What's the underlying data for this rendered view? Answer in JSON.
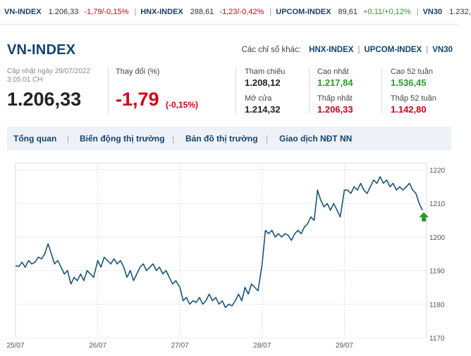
{
  "ticker": [
    {
      "name": "VN-INDEX",
      "value": "1.206,33",
      "change": "-1,79/-0,15%",
      "dir": "down"
    },
    {
      "name": "HNX-INDEX",
      "value": "288,61",
      "change": "-1,23/-0,42%",
      "dir": "down"
    },
    {
      "name": "UPCOM-INDEX",
      "value": "89,61",
      "change": "+0,11/+0,12%",
      "dir": "up"
    },
    {
      "name": "VN30",
      "value": "1.232,",
      "change": "",
      "dir": "none"
    }
  ],
  "header": {
    "title": "VN-INDEX",
    "others_label": "Các chỉ số khác:",
    "links": [
      "HNX-INDEX",
      "UPCOM-INDEX",
      "VN30"
    ]
  },
  "summary": {
    "updated_line1": "Cập nhật ngày 29/07/2022",
    "updated_line2": "3:05:01 CH",
    "price": "1.206,33",
    "change_label": "Thay đổi (%)",
    "change": "-1,79",
    "change_pct": "(-0,15%)"
  },
  "stats": [
    {
      "label": "Tham chiếu",
      "value": "1.208,12",
      "color": "#222222"
    },
    {
      "label": "Cao nhất",
      "value": "1.217,84",
      "color": "#2b9a2b"
    },
    {
      "label": "Cao 52 tuần",
      "value": "1.536,45",
      "color": "#2b9a2b"
    },
    {
      "label": "Mở cửa",
      "value": "1.214,32",
      "color": "#222222"
    },
    {
      "label": "Thấp nhất",
      "value": "1.206,33",
      "color": "#d0021b"
    },
    {
      "label": "Thấp 52 tuần",
      "value": "1.142,80",
      "color": "#d0021b"
    }
  ],
  "nav": [
    "Tổng quan",
    "Biến động thị trường",
    "Bản đồ thị trường",
    "Giao dịch NĐT NN"
  ],
  "colors": {
    "line": "#1a5577",
    "brand": "#12436f",
    "up": "#2b9a2b",
    "down": "#d0021b"
  },
  "chart_data": {
    "type": "line",
    "x_labels": [
      "25/07",
      "26/07",
      "27/07",
      "28/07",
      "29/07"
    ],
    "y_ticks": [
      1170,
      1180,
      1190,
      1200,
      1210,
      1220
    ],
    "ylim": [
      1170,
      1222
    ],
    "grid": true,
    "last_marker": "up-arrow",
    "series": [
      {
        "values": [
          1191.5,
          1191.2,
          1192.5,
          1191.0,
          1193.0,
          1192.0,
          1192.5,
          1194.0,
          1193.5,
          1195.0,
          1198.0,
          1195.0,
          1192.0,
          1193.0,
          1191.0,
          1189.0,
          1190.0,
          1186.0,
          1188.0,
          1187.0,
          1189.0,
          1187.0,
          1190.0,
          1189.0,
          1188.0,
          1193.0,
          1191.0,
          1194.0,
          1193.0,
          1192.0,
          1193.5,
          1192.0,
          1193.0,
          1191.0,
          1188.0,
          1190.0,
          1187.0,
          1189.0,
          1191.0,
          1192.0,
          1190.0,
          1191.0,
          1192.0,
          1190.0,
          1191.0,
          1189.0,
          1190.0,
          1188.0,
          1186.0,
          1187.0,
          1185.0,
          1181.0,
          1182.0,
          1180.0,
          1181.0,
          1180.5,
          1182.0,
          1180.0,
          1181.0,
          1183.0,
          1181.0,
          1182.0,
          1180.0,
          1181.0,
          1179.0,
          1180.0,
          1179.5,
          1181.0,
          1183.0,
          1181.0,
          1185.0,
          1183.0,
          1186.0,
          1185.0,
          1184.0,
          1192.0,
          1202.0,
          1201.0,
          1202.0,
          1200.0,
          1201.0,
          1200.0,
          1201.0,
          1200.5,
          1199.0,
          1201.0,
          1202.0,
          1201.0,
          1203.0,
          1204.0,
          1206.0,
          1205.0,
          1214.0,
          1211.0,
          1209.0,
          1210.0,
          1208.0,
          1210.0,
          1208.0,
          1206.0,
          1214.0,
          1214.0,
          1213.0,
          1215.0,
          1214.0,
          1216.0,
          1214.0,
          1213.0,
          1215.0,
          1217.0,
          1216.0,
          1218.0,
          1216.0,
          1217.0,
          1215.0,
          1216.0,
          1214.0,
          1215.0,
          1214.0,
          1215.0,
          1216.0,
          1214.0,
          1213.0,
          1210.0,
          1208.0
        ]
      }
    ]
  }
}
